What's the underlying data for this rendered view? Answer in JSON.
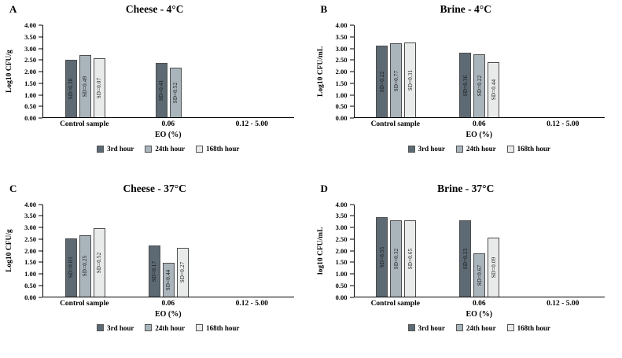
{
  "figure": {
    "background": "#ffffff"
  },
  "colors": {
    "series": [
      "#5d6a74",
      "#a9b4bb",
      "#e9ebeb"
    ],
    "bar_border": "#4d4d4d",
    "axis": "#000000"
  },
  "yticks": [
    "0.00",
    "0.50",
    "1.00",
    "1.50",
    "2.00",
    "2.50",
    "3.00",
    "3.50",
    "4.00"
  ],
  "chart_data": [
    {
      "type": "bar",
      "panel": "A",
      "title": "Cheese - 4°C",
      "ylabel": "Log10 CFU/g",
      "xlabel": "EO (%)",
      "ylim": [
        0,
        4.0
      ],
      "grid": false,
      "legend_position": "bottom",
      "categories": [
        "Control sample",
        "0.06",
        "0.12 - 5.00"
      ],
      "legend": [
        "3rd hour",
        "24th hour",
        "168th hour"
      ],
      "series": [
        {
          "name": "3rd hour",
          "values": [
            2.5,
            2.35,
            0
          ],
          "sd": [
            "SD=0.38",
            "SD=0.41",
            ""
          ]
        },
        {
          "name": "24th hour",
          "values": [
            2.7,
            2.15,
            0
          ],
          "sd": [
            "SD=0.49",
            "SD=0.52",
            ""
          ]
        },
        {
          "name": "168th hour",
          "values": [
            2.55,
            0,
            0
          ],
          "sd": [
            "SD=0.07",
            "",
            ""
          ]
        }
      ]
    },
    {
      "type": "bar",
      "panel": "B",
      "title": "Brine - 4°C",
      "ylabel": "Log10 CFU/mL",
      "xlabel": "EO (%)",
      "ylim": [
        0,
        4.0
      ],
      "grid": false,
      "legend_position": "bottom",
      "categories": [
        "Control sample",
        "0.06",
        "0.12 - 5.00"
      ],
      "legend": [
        "3rd hour",
        "24th hour",
        "168th hour"
      ],
      "series": [
        {
          "name": "3rd hour",
          "values": [
            3.1,
            2.8,
            0
          ],
          "sd": [
            "SD=0.22",
            "SD=0.36",
            ""
          ]
        },
        {
          "name": "24th hour",
          "values": [
            3.2,
            2.75,
            0
          ],
          "sd": [
            "SD=0.77",
            "SD=0.22",
            ""
          ]
        },
        {
          "name": "168th hour",
          "values": [
            3.25,
            2.4,
            0
          ],
          "sd": [
            "SD=0.31",
            "SD=0.44",
            ""
          ]
        }
      ]
    },
    {
      "type": "bar",
      "panel": "C",
      "title": "Cheese - 37°C",
      "ylabel": "Log10 CFU/g",
      "xlabel": "EO (%)",
      "ylim": [
        0,
        4.0
      ],
      "grid": false,
      "legend_position": "bottom",
      "categories": [
        "Control sample",
        "0.06",
        "0.12 - 5.00"
      ],
      "legend": [
        "3rd hour",
        "24th hour",
        "168th hour"
      ],
      "series": [
        {
          "name": "3rd hour",
          "values": [
            2.5,
            2.2,
            0
          ],
          "sd": [
            "SD=0.03",
            "SD=0.17",
            ""
          ]
        },
        {
          "name": "24th hour",
          "values": [
            2.65,
            1.45,
            0
          ],
          "sd": [
            "SD=0.25",
            "SD=0.44",
            ""
          ]
        },
        {
          "name": "168th hour",
          "values": [
            2.95,
            2.1,
            0
          ],
          "sd": [
            "SD=0.52",
            "SD=0.27",
            ""
          ]
        }
      ]
    },
    {
      "type": "bar",
      "panel": "D",
      "title": "Brine - 37°C",
      "ylabel": "log10 CFU/mL",
      "xlabel": "EO (%)",
      "ylim": [
        0,
        4.0
      ],
      "grid": false,
      "legend_position": "bottom",
      "categories": [
        "Control sample",
        "0.06",
        "0.12 - 5.00"
      ],
      "legend": [
        "3rd hour",
        "24th hour",
        "168th hour"
      ],
      "series": [
        {
          "name": "3rd hour",
          "values": [
            3.45,
            3.3,
            0
          ],
          "sd": [
            "SD=0.55",
            "SD=0.23",
            ""
          ]
        },
        {
          "name": "24th hour",
          "values": [
            3.3,
            1.85,
            0
          ],
          "sd": [
            "SD=0.32",
            "SD=0.67",
            ""
          ]
        },
        {
          "name": "168th hour",
          "values": [
            3.3,
            2.55,
            0
          ],
          "sd": [
            "SD=0.65",
            "SD=0.09",
            ""
          ]
        }
      ]
    }
  ]
}
